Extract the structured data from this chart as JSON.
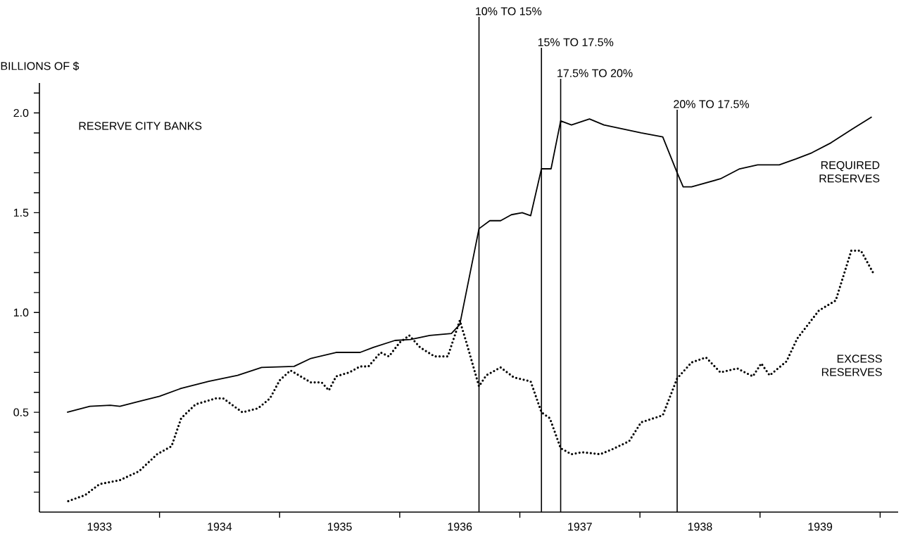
{
  "chart_data": {
    "type": "line",
    "title": "RESERVE CITY BANKS",
    "ylabel": "BILLIONS OF $",
    "xlim": [
      1933,
      1940.15
    ],
    "ylim": [
      0,
      2.15
    ],
    "xticks": [
      {
        "value": 1933.5,
        "label": "1933"
      },
      {
        "value": 1934.5,
        "label": "1934"
      },
      {
        "value": 1935.5,
        "label": "1935"
      },
      {
        "value": 1936.5,
        "label": "1936"
      },
      {
        "value": 1937.5,
        "label": "1937"
      },
      {
        "value": 1938.5,
        "label": "1938"
      },
      {
        "value": 1939.5,
        "label": "1939"
      },
      {
        "value": 1934,
        "label": null
      },
      {
        "value": 1935,
        "label": null
      },
      {
        "value": 1936,
        "label": null
      },
      {
        "value": 1937,
        "label": null
      },
      {
        "value": 1938,
        "label": null
      },
      {
        "value": 1939,
        "label": null
      },
      {
        "value": 1940,
        "label": null
      }
    ],
    "yticks": [
      {
        "value": 0.1,
        "label": null
      },
      {
        "value": 0.2,
        "label": null
      },
      {
        "value": 0.3,
        "label": null
      },
      {
        "value": 0.4,
        "label": null
      },
      {
        "value": 0.5,
        "label": "0.5"
      },
      {
        "value": 0.6,
        "label": null
      },
      {
        "value": 0.7,
        "label": null
      },
      {
        "value": 0.8,
        "label": null
      },
      {
        "value": 0.9,
        "label": null
      },
      {
        "value": 1.0,
        "label": "1.0"
      },
      {
        "value": 1.1,
        "label": null
      },
      {
        "value": 1.2,
        "label": null
      },
      {
        "value": 1.3,
        "label": null
      },
      {
        "value": 1.4,
        "label": null
      },
      {
        "value": 1.5,
        "label": "1.5"
      },
      {
        "value": 1.6,
        "label": null
      },
      {
        "value": 1.7,
        "label": null
      },
      {
        "value": 1.8,
        "label": null
      },
      {
        "value": 1.9,
        "label": null
      },
      {
        "value": 2.0,
        "label": "2.0"
      },
      {
        "value": 2.1,
        "label": null
      }
    ],
    "grid": false,
    "legend": false,
    "marker": "none",
    "ref_lines": [
      {
        "axis": "x",
        "value": 1936.66,
        "label": "10% TO 15%"
      },
      {
        "axis": "x",
        "value": 1937.18,
        "label": "15% TO 17.5%"
      },
      {
        "axis": "x",
        "value": 1937.34,
        "label": "17.5% TO 20%"
      },
      {
        "axis": "x",
        "value": 1938.31,
        "label": "20% TO 17.5%"
      }
    ],
    "series": [
      {
        "name": "REQUIRED RESERVES",
        "color": "#000000",
        "line_style": "solid",
        "x": [
          1933.23,
          1933.42,
          1933.59,
          1933.67,
          1933.83,
          1934.0,
          1934.18,
          1934.41,
          1934.65,
          1934.85,
          1935.12,
          1935.26,
          1935.47,
          1935.67,
          1935.78,
          1935.96,
          1936.09,
          1936.25,
          1936.43,
          1936.5,
          1936.66,
          1936.75,
          1936.84,
          1936.93,
          1937.02,
          1937.09,
          1937.18,
          1937.26,
          1937.34,
          1937.43,
          1937.58,
          1937.7,
          1938.01,
          1938.19,
          1938.31,
          1938.36,
          1938.43,
          1938.67,
          1938.83,
          1938.98,
          1939.16,
          1939.3,
          1939.43,
          1939.59,
          1939.77,
          1939.93
        ],
        "values": [
          0.5,
          0.53,
          0.535,
          0.53,
          0.555,
          0.58,
          0.62,
          0.655,
          0.685,
          0.725,
          0.73,
          0.77,
          0.8,
          0.8,
          0.825,
          0.86,
          0.865,
          0.885,
          0.895,
          0.94,
          1.42,
          1.46,
          1.46,
          1.49,
          1.5,
          1.485,
          1.72,
          1.72,
          1.96,
          1.94,
          1.97,
          1.94,
          1.9,
          1.88,
          1.7,
          1.63,
          1.63,
          1.67,
          1.72,
          1.74,
          1.74,
          1.77,
          1.8,
          1.85,
          1.92,
          1.98
        ]
      },
      {
        "name": "EXCESS RESERVES",
        "color": "#000000",
        "line_style": "dotted",
        "x": [
          1933.24,
          1933.38,
          1933.5,
          1933.67,
          1933.83,
          1933.98,
          1934.1,
          1934.18,
          1934.3,
          1934.47,
          1934.53,
          1934.69,
          1934.82,
          1934.92,
          1935.0,
          1935.09,
          1935.26,
          1935.35,
          1935.41,
          1935.47,
          1935.58,
          1935.67,
          1935.74,
          1935.84,
          1935.91,
          1936.0,
          1936.08,
          1936.17,
          1936.29,
          1936.4,
          1936.5,
          1936.56,
          1936.66,
          1936.72,
          1936.84,
          1936.95,
          1937.09,
          1937.18,
          1937.25,
          1937.34,
          1937.43,
          1937.52,
          1937.67,
          1937.77,
          1937.91,
          1938.01,
          1938.19,
          1938.31,
          1938.43,
          1938.55,
          1938.67,
          1938.81,
          1938.94,
          1939.01,
          1939.08,
          1939.22,
          1939.31,
          1939.49,
          1939.63,
          1939.76,
          1939.84,
          1939.95
        ],
        "values": [
          0.055,
          0.085,
          0.14,
          0.16,
          0.205,
          0.29,
          0.33,
          0.47,
          0.54,
          0.57,
          0.57,
          0.5,
          0.52,
          0.57,
          0.66,
          0.71,
          0.65,
          0.65,
          0.61,
          0.68,
          0.7,
          0.73,
          0.73,
          0.8,
          0.78,
          0.85,
          0.885,
          0.825,
          0.78,
          0.78,
          0.96,
          0.84,
          0.63,
          0.685,
          0.725,
          0.675,
          0.655,
          0.5,
          0.47,
          0.32,
          0.29,
          0.3,
          0.29,
          0.315,
          0.355,
          0.45,
          0.485,
          0.67,
          0.75,
          0.775,
          0.7,
          0.72,
          0.68,
          0.745,
          0.685,
          0.755,
          0.87,
          1.01,
          1.06,
          1.31,
          1.31,
          1.19
        ]
      }
    ]
  }
}
